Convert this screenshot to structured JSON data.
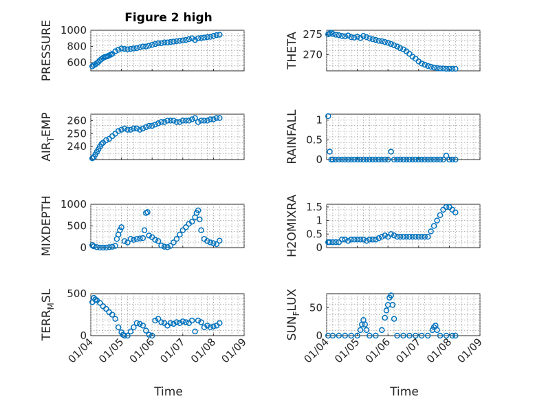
{
  "chart_data": [
    {
      "type": "scatter",
      "title": "Figure 2 high",
      "ylabel": "PRESSURE",
      "ylim": [
        500,
        1000
      ],
      "yticks": [
        600,
        800,
        1000
      ],
      "color": "#0072BD",
      "x": [
        0.05,
        0.1,
        0.15,
        0.2,
        0.25,
        0.3,
        0.35,
        0.4,
        0.45,
        0.5,
        0.55,
        0.6,
        0.65,
        0.7,
        0.8,
        0.9,
        1.0,
        1.1,
        1.2,
        1.3,
        1.4,
        1.5,
        1.6,
        1.7,
        1.8,
        1.9,
        2.0,
        2.1,
        2.2,
        2.3,
        2.4,
        2.5,
        2.6,
        2.7,
        2.8,
        2.9,
        3.0,
        3.1,
        3.2,
        3.3,
        3.4,
        3.5,
        3.6,
        3.7,
        3.8,
        3.9,
        4.0,
        4.1,
        4.2
      ],
      "values": [
        555,
        570,
        580,
        595,
        610,
        630,
        645,
        660,
        670,
        675,
        680,
        690,
        700,
        710,
        740,
        760,
        775,
        770,
        765,
        770,
        775,
        780,
        790,
        800,
        800,
        810,
        820,
        830,
        840,
        840,
        850,
        850,
        855,
        860,
        865,
        870,
        875,
        880,
        890,
        900,
        880,
        900,
        905,
        910,
        915,
        920,
        930,
        940,
        945
      ]
    },
    {
      "type": "scatter",
      "ylabel": "THETA",
      "ylim": [
        266,
        276
      ],
      "yticks": [
        270,
        275
      ],
      "color": "#0072BD",
      "x": [
        0.05,
        0.1,
        0.15,
        0.2,
        0.3,
        0.4,
        0.5,
        0.6,
        0.7,
        0.8,
        0.9,
        1.0,
        1.1,
        1.2,
        1.3,
        1.4,
        1.5,
        1.6,
        1.7,
        1.8,
        1.9,
        2.0,
        2.1,
        2.2,
        2.3,
        2.4,
        2.5,
        2.6,
        2.7,
        2.8,
        2.9,
        3.0,
        3.1,
        3.2,
        3.3,
        3.4,
        3.5,
        3.6,
        3.7,
        3.8,
        3.9,
        4.0,
        4.1,
        4.2
      ],
      "values": [
        275,
        275.2,
        275.4,
        275.1,
        274.9,
        274.8,
        274.6,
        274.5,
        274.7,
        274.3,
        274.2,
        274.4,
        274.1,
        274.6,
        274.3,
        274.0,
        273.8,
        273.6,
        273.4,
        273.3,
        273.1,
        272.9,
        272.6,
        272.3,
        272.0,
        271.6,
        271.3,
        270.8,
        270.2,
        269.5,
        269.0,
        268.3,
        267.8,
        267.5,
        267.2,
        267.0,
        266.8,
        266.7,
        266.6,
        266.6,
        266.5,
        266.5,
        266.5,
        266.5
      ]
    },
    {
      "type": "scatter",
      "ylabel": "AIR_TEMP",
      "ylim": [
        230,
        265
      ],
      "yticks": [
        240,
        250,
        260
      ],
      "color": "#0072BD",
      "x": [
        0.05,
        0.1,
        0.15,
        0.2,
        0.25,
        0.3,
        0.35,
        0.4,
        0.5,
        0.6,
        0.7,
        0.8,
        0.9,
        1.0,
        1.1,
        1.2,
        1.3,
        1.4,
        1.5,
        1.6,
        1.7,
        1.8,
        1.9,
        2.0,
        2.1,
        2.2,
        2.3,
        2.4,
        2.5,
        2.6,
        2.7,
        2.8,
        2.9,
        3.0,
        3.1,
        3.2,
        3.3,
        3.4,
        3.5,
        3.6,
        3.7,
        3.8,
        3.9,
        4.0,
        4.1,
        4.2
      ],
      "values": [
        231,
        232,
        234,
        236,
        238,
        240,
        242,
        243,
        245,
        246,
        248,
        250,
        252,
        253,
        254,
        253,
        253,
        254,
        254,
        253,
        254,
        255,
        256,
        256,
        257,
        258,
        259,
        259,
        260,
        260,
        260,
        259,
        259,
        260,
        260,
        260,
        261,
        262,
        259,
        260,
        260,
        260,
        261,
        261,
        262,
        262
      ]
    },
    {
      "type": "scatter",
      "ylabel": "RAINFALL",
      "ylim": [
        0,
        1.15
      ],
      "yticks": [
        0,
        0.5,
        1
      ],
      "color": "#0072BD",
      "x": [
        0.05,
        0.1,
        0.15,
        0.2,
        0.3,
        0.4,
        0.5,
        0.6,
        0.7,
        0.8,
        0.9,
        1.0,
        1.1,
        1.2,
        1.3,
        1.4,
        1.5,
        1.6,
        1.7,
        1.8,
        1.9,
        2.0,
        2.1,
        2.2,
        2.3,
        2.4,
        2.5,
        2.6,
        2.7,
        2.8,
        2.9,
        3.0,
        3.1,
        3.2,
        3.3,
        3.4,
        3.5,
        3.6,
        3.7,
        3.8,
        3.9,
        4.0,
        4.1,
        4.2
      ],
      "values": [
        1.1,
        0.2,
        0,
        0,
        0,
        0,
        0,
        0,
        0,
        0,
        0,
        0,
        0,
        0,
        0,
        0,
        0,
        0,
        0,
        0,
        0,
        0,
        0.2,
        0,
        0,
        0,
        0,
        0,
        0,
        0,
        0,
        0,
        0,
        0,
        0,
        0,
        0,
        0,
        0,
        0,
        0.1,
        0,
        0,
        0
      ]
    },
    {
      "type": "scatter",
      "ylabel": "MIXDEPTH",
      "ylim": [
        0,
        1000
      ],
      "yticks": [
        0,
        500,
        1000
      ],
      "color": "#0072BD",
      "x": [
        0.05,
        0.1,
        0.2,
        0.3,
        0.4,
        0.5,
        0.6,
        0.7,
        0.8,
        0.85,
        0.9,
        0.95,
        1.0,
        1.1,
        1.2,
        1.3,
        1.4,
        1.5,
        1.6,
        1.7,
        1.75,
        1.8,
        1.85,
        1.9,
        2.0,
        2.1,
        2.2,
        2.3,
        2.4,
        2.5,
        2.6,
        2.7,
        2.8,
        2.9,
        3.0,
        3.1,
        3.2,
        3.3,
        3.4,
        3.45,
        3.5,
        3.55,
        3.6,
        3.7,
        3.8,
        3.9,
        4.0,
        4.1,
        4.2
      ],
      "values": [
        60,
        30,
        10,
        0,
        0,
        0,
        10,
        20,
        40,
        200,
        300,
        400,
        470,
        150,
        120,
        200,
        180,
        200,
        210,
        220,
        400,
        800,
        820,
        280,
        240,
        180,
        150,
        50,
        20,
        10,
        40,
        120,
        200,
        300,
        400,
        470,
        550,
        600,
        700,
        800,
        860,
        650,
        400,
        200,
        150,
        120,
        100,
        80,
        160
      ]
    },
    {
      "type": "scatter",
      "ylabel": "H2OMIXRA",
      "ylim": [
        0,
        1.6
      ],
      "yticks": [
        0,
        0.5,
        1,
        1.5
      ],
      "color": "#0072BD",
      "x": [
        0.05,
        0.1,
        0.2,
        0.3,
        0.4,
        0.5,
        0.6,
        0.7,
        0.8,
        0.9,
        1.0,
        1.1,
        1.2,
        1.3,
        1.4,
        1.5,
        1.6,
        1.7,
        1.8,
        1.9,
        2.0,
        2.1,
        2.2,
        2.3,
        2.4,
        2.5,
        2.6,
        2.7,
        2.8,
        2.9,
        3.0,
        3.1,
        3.2,
        3.3,
        3.4,
        3.5,
        3.6,
        3.7,
        3.8,
        3.9,
        4.0,
        4.1,
        4.2
      ],
      "values": [
        0.2,
        0.2,
        0.2,
        0.2,
        0.2,
        0.3,
        0.3,
        0.25,
        0.3,
        0.3,
        0.3,
        0.3,
        0.3,
        0.25,
        0.3,
        0.3,
        0.3,
        0.35,
        0.4,
        0.45,
        0.4,
        0.5,
        0.45,
        0.4,
        0.4,
        0.4,
        0.4,
        0.4,
        0.4,
        0.4,
        0.4,
        0.4,
        0.4,
        0.4,
        0.6,
        0.8,
        1.0,
        1.2,
        1.4,
        1.5,
        1.5,
        1.4,
        1.3
      ]
    },
    {
      "type": "scatter",
      "ylabel": "TERR_MSL",
      "ylim": [
        0,
        500
      ],
      "yticks": [
        0,
        500
      ],
      "color": "#0072BD",
      "x": [
        0.05,
        0.1,
        0.15,
        0.2,
        0.3,
        0.4,
        0.5,
        0.6,
        0.7,
        0.8,
        0.9,
        1.0,
        1.05,
        1.1,
        1.2,
        1.3,
        1.4,
        1.5,
        1.6,
        1.7,
        1.8,
        1.9,
        2.0,
        2.1,
        2.2,
        2.3,
        2.4,
        2.5,
        2.6,
        2.7,
        2.8,
        2.9,
        3.0,
        3.1,
        3.2,
        3.3,
        3.4,
        3.5,
        3.6,
        3.7,
        3.8,
        3.9,
        4.0,
        4.1,
        4.2
      ],
      "values": [
        400,
        450,
        430,
        420,
        390,
        350,
        320,
        280,
        250,
        200,
        100,
        40,
        10,
        0,
        0,
        50,
        100,
        150,
        140,
        120,
        60,
        10,
        0,
        180,
        200,
        160,
        150,
        120,
        150,
        140,
        160,
        150,
        170,
        160,
        150,
        180,
        50,
        180,
        160,
        100,
        120,
        100,
        110,
        120,
        150
      ]
    },
    {
      "type": "scatter",
      "ylabel": "SUN_FLUX",
      "ylim": [
        0,
        75
      ],
      "yticks": [
        0,
        50
      ],
      "color": "#0072BD",
      "x": [
        0.05,
        0.2,
        0.4,
        0.6,
        0.8,
        1.0,
        1.1,
        1.15,
        1.2,
        1.25,
        1.3,
        1.4,
        1.6,
        1.8,
        1.9,
        1.95,
        2.0,
        2.05,
        2.1,
        2.15,
        2.2,
        2.3,
        2.5,
        2.7,
        2.9,
        3.1,
        3.3,
        3.45,
        3.5,
        3.55,
        3.6,
        3.7,
        3.9,
        4.1,
        4.2
      ],
      "values": [
        0,
        0,
        0,
        0,
        0,
        0,
        10,
        20,
        28,
        20,
        10,
        0,
        0,
        10,
        32,
        45,
        55,
        68,
        72,
        55,
        30,
        0,
        0,
        0,
        0,
        0,
        0,
        10,
        15,
        18,
        10,
        0,
        0,
        0,
        0
      ]
    }
  ],
  "axes": {
    "xticks": [
      "01/04",
      "01/05",
      "01/06",
      "01/07",
      "01/08",
      "01/09"
    ],
    "xlabel": "Time"
  }
}
